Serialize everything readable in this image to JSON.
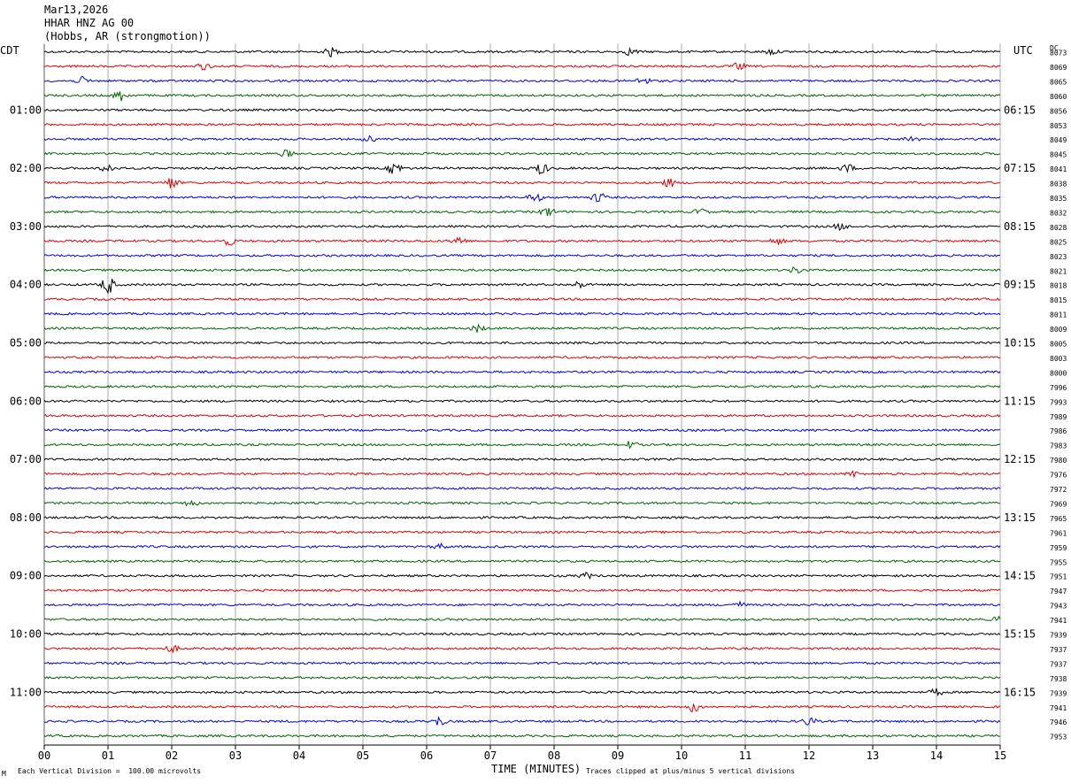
{
  "header": {
    "date": "Mar13,2026",
    "station": "HHAR HNZ AG 00",
    "location": "(Hobbs, AR (strongmotion))"
  },
  "labels": {
    "left_tz": "CDT",
    "right_tz": "UTC",
    "dc_header": "DC",
    "xlabel": "TIME (MINUTES)",
    "scale_note": "Each Vertical Division =  100.00 microvolts",
    "clip_note": "Traces clipped at plus/minus 5 vertical divisions",
    "corner_mark": "M"
  },
  "chart_data": {
    "type": "line",
    "title": "HHAR HNZ AG 00 (Hobbs, AR (strongmotion))",
    "xlabel": "TIME (MINUTES)",
    "xlim": [
      0,
      15
    ],
    "x_ticks": [
      "00",
      "01",
      "02",
      "03",
      "04",
      "05",
      "06",
      "07",
      "08",
      "09",
      "10",
      "11",
      "12",
      "13",
      "14",
      "15"
    ],
    "left_hour_labels": [
      "01:00",
      "02:00",
      "03:00",
      "04:00",
      "05:00",
      "06:00",
      "07:00",
      "08:00",
      "09:00",
      "10:00",
      "11:00"
    ],
    "right_hour_labels": [
      "06:15",
      "07:15",
      "08:15",
      "09:15",
      "10:15",
      "11:15",
      "12:15",
      "13:15",
      "14:15",
      "15:15",
      "16:15"
    ],
    "hour_label_first_row": 4,
    "rows_per_hour": 4,
    "trace_colors": [
      "#000000",
      "#e00000",
      "#0000e0",
      "#006400"
    ],
    "dc_offsets": [
      "8073",
      "8069",
      "8065",
      "8060",
      "8056",
      "8053",
      "8049",
      "8045",
      "8041",
      "8038",
      "8035",
      "8032",
      "8028",
      "8025",
      "8023",
      "8021",
      "8018",
      "8015",
      "8011",
      "8009",
      "8005",
      "8003",
      "8000",
      "7996",
      "7993",
      "7989",
      "7986",
      "7983",
      "7980",
      "7976",
      "7972",
      "7969",
      "7965",
      "7961",
      "7959",
      "7955",
      "7951",
      "7947",
      "7943",
      "7941",
      "7939",
      "7937",
      "7937",
      "7938",
      "7939",
      "7941",
      "7946",
      "7953"
    ],
    "events": [
      {
        "row": 0,
        "minute": 4.5,
        "amp": 0.6
      },
      {
        "row": 0,
        "minute": 9.2,
        "amp": 0.5
      },
      {
        "row": 0,
        "minute": 11.4,
        "amp": 0.4
      },
      {
        "row": 1,
        "minute": 2.5,
        "amp": 0.5
      },
      {
        "row": 1,
        "minute": 10.9,
        "amp": 0.5
      },
      {
        "row": 2,
        "minute": 0.6,
        "amp": 0.5
      },
      {
        "row": 2,
        "minute": 9.4,
        "amp": 0.6
      },
      {
        "row": 3,
        "minute": 1.2,
        "amp": 0.8
      },
      {
        "row": 6,
        "minute": 5.1,
        "amp": 0.4
      },
      {
        "row": 6,
        "minute": 13.6,
        "amp": 0.5
      },
      {
        "row": 7,
        "minute": 3.8,
        "amp": 0.5
      },
      {
        "row": 8,
        "minute": 1.0,
        "amp": 0.7
      },
      {
        "row": 8,
        "minute": 5.5,
        "amp": 1.0
      },
      {
        "row": 8,
        "minute": 7.8,
        "amp": 0.9
      },
      {
        "row": 8,
        "minute": 12.6,
        "amp": 0.6
      },
      {
        "row": 9,
        "minute": 2.0,
        "amp": 0.9
      },
      {
        "row": 9,
        "minute": 9.8,
        "amp": 0.6
      },
      {
        "row": 10,
        "minute": 7.7,
        "amp": 0.7
      },
      {
        "row": 10,
        "minute": 8.7,
        "amp": 0.8
      },
      {
        "row": 11,
        "minute": 7.9,
        "amp": 0.7
      },
      {
        "row": 11,
        "minute": 10.3,
        "amp": 0.5
      },
      {
        "row": 12,
        "minute": 12.5,
        "amp": 0.5
      },
      {
        "row": 13,
        "minute": 2.9,
        "amp": 0.6
      },
      {
        "row": 13,
        "minute": 6.5,
        "amp": 0.7
      },
      {
        "row": 13,
        "minute": 11.5,
        "amp": 0.5
      },
      {
        "row": 15,
        "minute": 11.8,
        "amp": 0.5
      },
      {
        "row": 16,
        "minute": 1.0,
        "amp": 1.4
      },
      {
        "row": 16,
        "minute": 8.4,
        "amp": 0.5
      },
      {
        "row": 19,
        "minute": 6.8,
        "amp": 0.5
      },
      {
        "row": 27,
        "minute": 9.2,
        "amp": 0.5
      },
      {
        "row": 29,
        "minute": 12.7,
        "amp": 0.4
      },
      {
        "row": 31,
        "minute": 2.3,
        "amp": 0.5
      },
      {
        "row": 34,
        "minute": 6.2,
        "amp": 0.4
      },
      {
        "row": 36,
        "minute": 8.5,
        "amp": 0.4
      },
      {
        "row": 38,
        "minute": 10.9,
        "amp": 0.4
      },
      {
        "row": 39,
        "minute": 15.0,
        "amp": 0.6
      },
      {
        "row": 41,
        "minute": 2.0,
        "amp": 0.5
      },
      {
        "row": 44,
        "minute": 14.0,
        "amp": 0.5
      },
      {
        "row": 45,
        "minute": 10.2,
        "amp": 0.8
      },
      {
        "row": 46,
        "minute": 6.2,
        "amp": 0.7
      },
      {
        "row": 46,
        "minute": 12.0,
        "amp": 0.6
      }
    ]
  }
}
